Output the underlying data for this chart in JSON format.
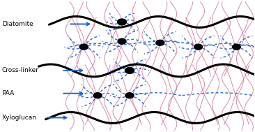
{
  "labels": [
    "Xyloglucan",
    "PAA",
    "Cross-linker",
    "Diatomite"
  ],
  "black_line_color": "#000000",
  "pink_line_color": "#cc7799",
  "blue_dot_color": "#2266cc",
  "arrow_color": "#2266cc",
  "bg_color": "#ffffff",
  "label_fontsize": 6.5,
  "black_linewidth": 2.2,
  "pink_linewidth": 0.7,
  "blue_dot_linewidth": 1.1
}
